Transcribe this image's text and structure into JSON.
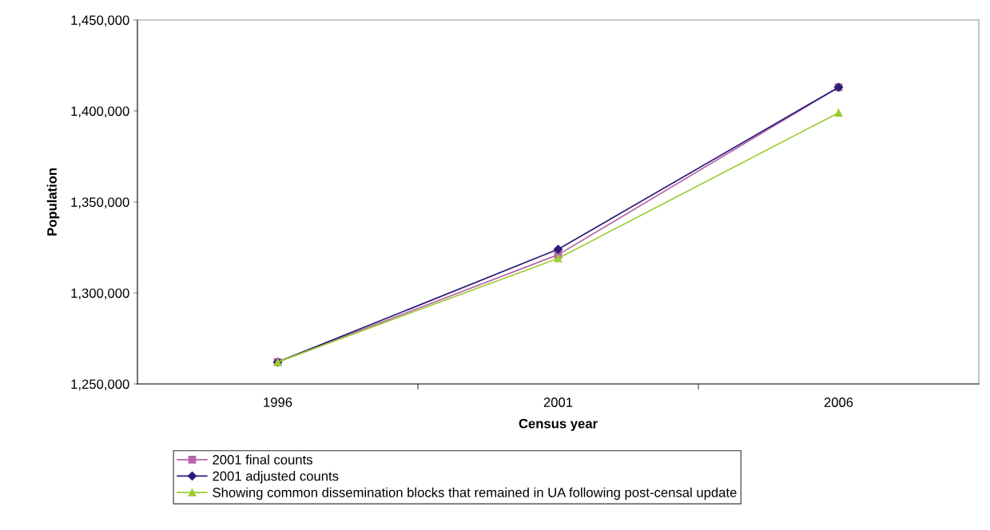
{
  "chart_data": {
    "type": "line",
    "xlabel": "Census year",
    "ylabel": "Population",
    "categories": [
      "1996",
      "2001",
      "2006"
    ],
    "series": [
      {
        "name": "2001 final counts",
        "color": "#b565a7",
        "marker": "square",
        "values": [
          1262000,
          1321000,
          1413000
        ]
      },
      {
        "name": "2001 adjusted counts",
        "color": "#2e1a78",
        "marker": "diamond",
        "values": [
          1262000,
          1324000,
          1413000
        ]
      },
      {
        "name": "Showing common dissemination blocks that remained in UA following post-censal update",
        "color": "#9acd32",
        "marker": "triangle",
        "values": [
          1262000,
          1319000,
          1399000
        ]
      }
    ],
    "ylim": [
      1250000,
      1450000
    ],
    "yticks": [
      {
        "value": 1250000,
        "label": "1,250,000"
      },
      {
        "value": 1300000,
        "label": "1,300,000"
      },
      {
        "value": 1350000,
        "label": "1,350,000"
      },
      {
        "value": 1400000,
        "label": "1,400,000"
      },
      {
        "value": 1450000,
        "label": "1,450,000"
      }
    ],
    "grid": false,
    "legend": "bottom",
    "line_style": "solid"
  }
}
